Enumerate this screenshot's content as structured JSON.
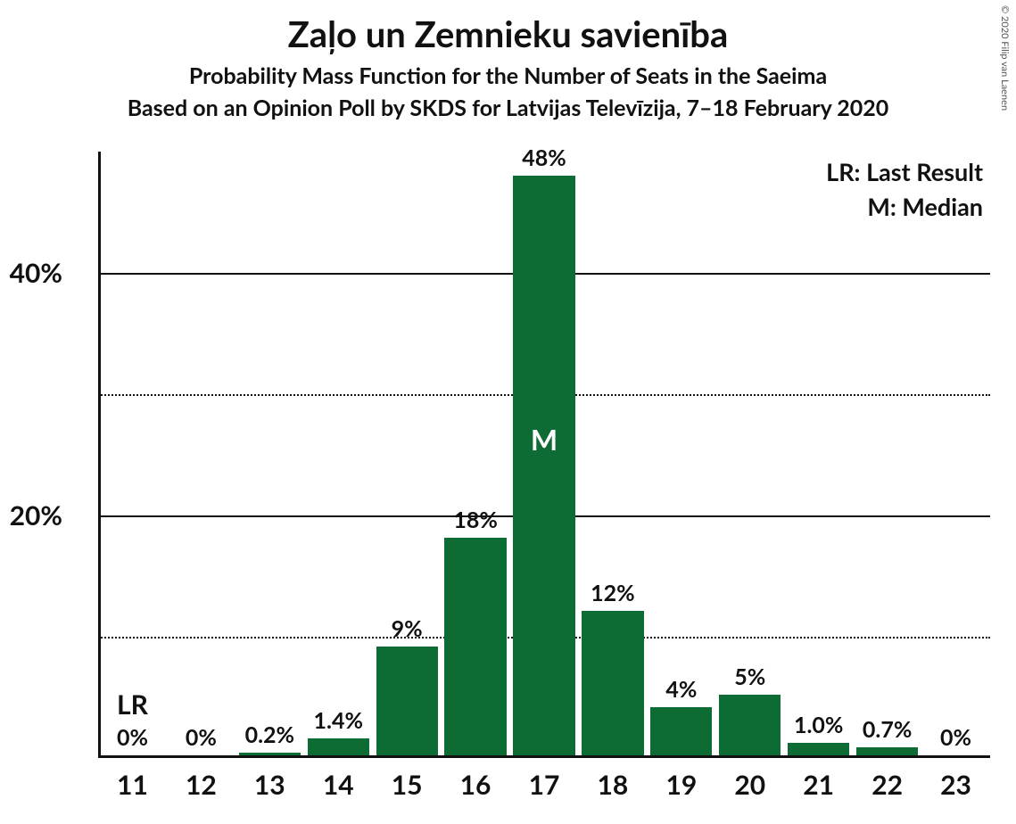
{
  "title": "Zaļo un Zemnieku savienība",
  "subtitle1": "Probability Mass Function for the Number of Seats in the Saeima",
  "subtitle2": "Based on an Opinion Poll by SKDS for Latvijas Televīzija, 7–18 February 2020",
  "copyright": "© 2020 Filip van Laenen",
  "chart": {
    "type": "bar",
    "bar_color": "#0d6b34",
    "background_color": "#ffffff",
    "axis_color": "#111111",
    "grid_solid_color": "#111111",
    "grid_dotted_color": "#111111",
    "categories": [
      "11",
      "12",
      "13",
      "14",
      "15",
      "16",
      "17",
      "18",
      "19",
      "20",
      "21",
      "22",
      "23"
    ],
    "values_pct": [
      0,
      0,
      0.2,
      1.4,
      9,
      18,
      48,
      12,
      4,
      5,
      1.0,
      0.7,
      0
    ],
    "value_labels": [
      "0%",
      "0%",
      "0.2%",
      "1.4%",
      "9%",
      "18%",
      "48%",
      "12%",
      "4%",
      "5%",
      "1.0%",
      "0.7%",
      "0%"
    ],
    "ylim": [
      0,
      50
    ],
    "ytick_major": [
      20,
      40
    ],
    "ytick_minor": [
      10,
      30
    ],
    "ytick_labels": [
      "20%",
      "40%"
    ],
    "bar_width_ratio": 0.9,
    "title_fontsize": 40,
    "subtitle_fontsize": 25,
    "axis_label_fontsize": 30,
    "bar_label_fontsize": 25,
    "lr_index": 0,
    "lr_label": "LR",
    "median_index": 6,
    "median_label": "M",
    "legend": {
      "lr": "LR: Last Result",
      "median": "M: Median"
    }
  }
}
